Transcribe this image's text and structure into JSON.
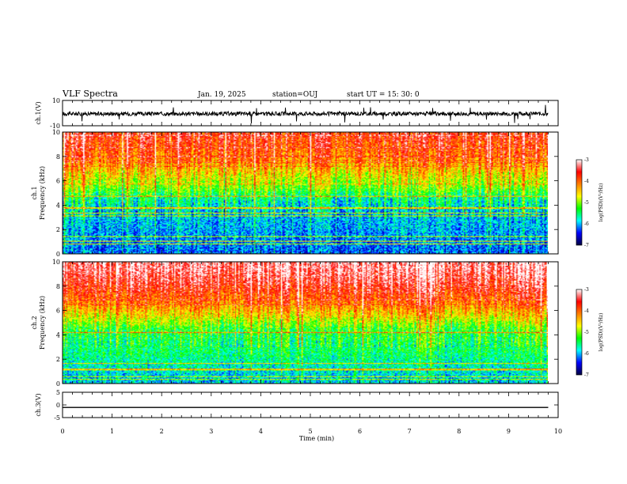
{
  "header": {
    "title": "VLF Spectra",
    "date": "Jan. 19, 2025",
    "station": "station=OUJ",
    "start": "start  UT =   15: 30: 0"
  },
  "chart_data": [
    {
      "type": "line",
      "panel": "ch1-waveform",
      "ylabel": "ch.1(V)",
      "ylim": [
        -10,
        10
      ],
      "ytick_labels": [
        "10",
        "-10"
      ],
      "x": [
        0,
        9.8
      ],
      "baseline": -0.5,
      "color": "#000000"
    },
    {
      "type": "heatmap",
      "panel": "ch1-spectrogram",
      "ylabel": "ch.1\nFrequency (kHz)",
      "ylim": [
        0,
        10
      ],
      "ytick_labels": [
        "0",
        "2",
        "4",
        "6",
        "8",
        "10"
      ],
      "xlim": [
        0,
        9.8
      ],
      "frequency_kHz": [
        0.5,
        1.5,
        2.5,
        3.5,
        4.5,
        5.5,
        6.5,
        7.5,
        8.5,
        9.5
      ],
      "mean_log_psd": [
        -6.2,
        -6.1,
        -6.0,
        -5.9,
        -5.6,
        -5.0,
        -4.6,
        -4.2,
        -3.9,
        -3.7
      ],
      "colorbar": {
        "label": "log(PSD)(V²/Hz)",
        "range": [
          -7,
          -3
        ],
        "tick_labels": [
          "-3",
          "-4",
          "-5",
          "-6",
          "-7"
        ],
        "colors": [
          "#ffffff",
          "#ff0000",
          "#ff8000",
          "#ffff00",
          "#00ff00",
          "#00ffff",
          "#0000ff",
          "#000040"
        ]
      }
    },
    {
      "type": "heatmap",
      "panel": "ch2-spectrogram",
      "ylabel": "ch.2\nFrequency (kHz)",
      "ylim": [
        0,
        10
      ],
      "ytick_labels": [
        "0",
        "2",
        "4",
        "6",
        "8",
        "10"
      ],
      "xlim": [
        0,
        9.8
      ],
      "frequency_kHz": [
        0.5,
        1.5,
        2.5,
        3.5,
        4.5,
        5.5,
        6.5,
        7.5,
        8.5,
        9.5
      ],
      "mean_log_psd": [
        -5.9,
        -5.7,
        -5.5,
        -5.4,
        -5.2,
        -4.6,
        -4.1,
        -3.7,
        -3.4,
        -3.2
      ],
      "colorbar": {
        "label": "log(PSD)(V²/Hz)",
        "range": [
          -7,
          -3
        ],
        "tick_labels": [
          "-3",
          "-4",
          "-5",
          "-6",
          "-7"
        ],
        "colors": [
          "#ffffff",
          "#ff0000",
          "#ff8000",
          "#ffff00",
          "#00ff00",
          "#00ffff",
          "#0000ff",
          "#000040"
        ]
      }
    },
    {
      "type": "line",
      "panel": "ch3-waveform",
      "ylabel": "ch.3(V)",
      "ylim": [
        -5,
        5
      ],
      "ytick_labels": [
        "5",
        "0",
        "-5"
      ],
      "x": [
        0,
        9.8
      ],
      "values": [
        -1.0,
        -1.0
      ],
      "color": "#000000"
    }
  ],
  "xaxis": {
    "label": "Time (min)",
    "xlim": [
      0,
      10
    ],
    "tick_labels": [
      "0",
      "1",
      "2",
      "3",
      "4",
      "5",
      "6",
      "7",
      "8",
      "9",
      "10"
    ]
  }
}
